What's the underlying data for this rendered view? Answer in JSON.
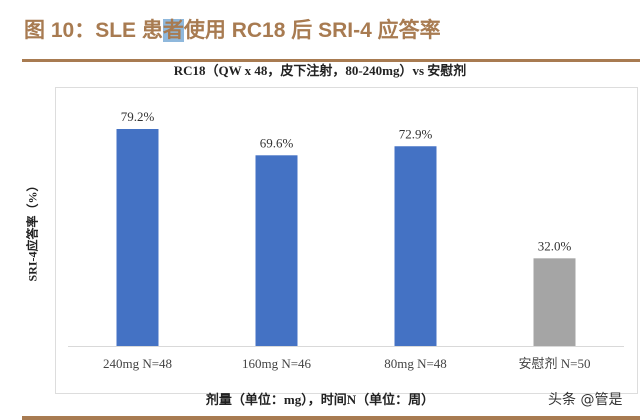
{
  "header": {
    "title_pre": "图 10：SLE 患",
    "title_hl": "者",
    "title_post": "使用 RC18 后 SRI-4 应答率"
  },
  "watermark": "头条 @管是",
  "chart_data": {
    "type": "bar",
    "title": "RC18（QW x 48，皮下注射，80-240mg）vs 安慰剂",
    "xlabel": "剂量（单位：mg），时间N（单位：周）",
    "ylabel": "SRI-4应答率（%）",
    "categories": [
      "240mg N=48",
      "160mg N=46",
      "80mg N=48",
      "安慰剂 N=50"
    ],
    "values": [
      79.2,
      69.6,
      72.9,
      32.0
    ],
    "data_labels": [
      "79.2%",
      "69.6%",
      "72.9%",
      "32.0%"
    ],
    "colors": [
      "#4472c4",
      "#4472c4",
      "#4472c4",
      "#a5a5a5"
    ],
    "ylim": [
      0,
      80
    ],
    "grid": false
  }
}
